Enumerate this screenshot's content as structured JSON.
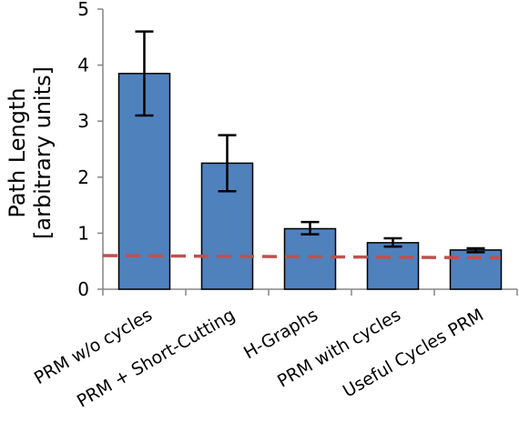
{
  "chart_data": {
    "type": "bar",
    "title": "",
    "ylabel_line1": "Path Length",
    "ylabel_line2": "[arbitrary units]",
    "xlabel": "",
    "ylim": [
      0,
      5
    ],
    "yticks": [
      0,
      1,
      2,
      3,
      4,
      5
    ],
    "grid": false,
    "legend": "none",
    "categories": [
      "PRM w/o cycles",
      "PRM  + Short-Cutting",
      "H-Graphs",
      "PRM with cycles",
      "Useful Cycles PRM"
    ],
    "values": [
      3.85,
      2.25,
      1.08,
      0.83,
      0.7
    ],
    "error_low": [
      3.1,
      1.75,
      0.98,
      0.76,
      0.66
    ],
    "error_high": [
      4.6,
      2.75,
      1.2,
      0.91,
      0.73
    ],
    "reference_line": {
      "y_start": 0.6,
      "y_end": 0.56,
      "style": "dashed",
      "color": "#c0504d"
    },
    "colors": {
      "bar_fill": "#4f81bd",
      "bar_stroke": "#000000",
      "error_bar": "#000000",
      "axis": "#868686"
    }
  }
}
